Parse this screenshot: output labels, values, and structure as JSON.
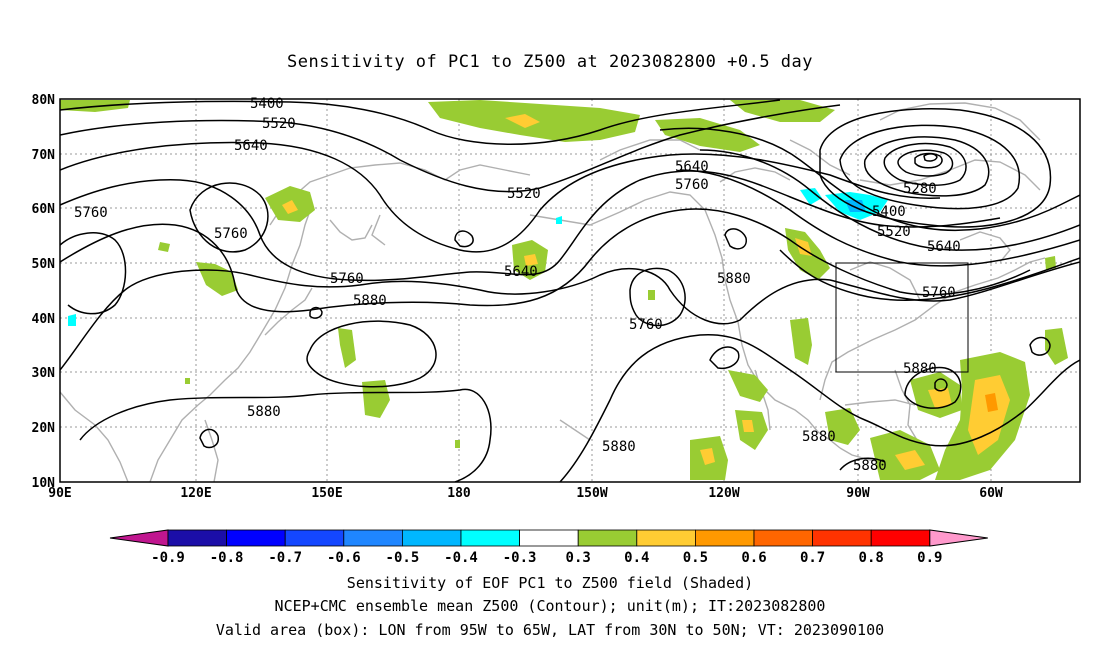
{
  "title": "Sensitivity of PC1 to Z500 at 2023082800 +0.5 day",
  "map": {
    "lon_labels": [
      "90E",
      "120E",
      "150E",
      "180",
      "150W",
      "120W",
      "90W",
      "60W"
    ],
    "lat_labels": [
      "10N",
      "20N",
      "30N",
      "40N",
      "50N",
      "60N",
      "70N",
      "80N"
    ],
    "contour_labels": [
      {
        "text": "5400",
        "ref": "top-west"
      },
      {
        "text": "5520",
        "ref": "north-west"
      },
      {
        "text": "5640",
        "ref": "north-west"
      },
      {
        "text": "5760",
        "ref": "west"
      },
      {
        "text": "5760",
        "ref": "west-central"
      },
      {
        "text": "5520",
        "ref": "dateline"
      },
      {
        "text": "5640",
        "ref": "north-pacific"
      },
      {
        "text": "5640",
        "ref": "alaska"
      },
      {
        "text": "5760",
        "ref": "alaska"
      },
      {
        "text": "5760",
        "ref": "central-pacific"
      },
      {
        "text": "5880",
        "ref": "central-pacific"
      },
      {
        "text": "5760",
        "ref": "east-pacific-low"
      },
      {
        "text": "5880",
        "ref": "west-coast"
      },
      {
        "text": "5280",
        "ref": "greenland-low"
      },
      {
        "text": "5400",
        "ref": "labrador"
      },
      {
        "text": "5520",
        "ref": "labrador"
      },
      {
        "text": "5640",
        "ref": "canada-east"
      },
      {
        "text": "5760",
        "ref": "great-lakes"
      },
      {
        "text": "5880",
        "ref": "west-pacific"
      },
      {
        "text": "5880",
        "ref": "subtropical-pacific"
      },
      {
        "text": "5880",
        "ref": "mexico"
      },
      {
        "text": "5880",
        "ref": "caribbean"
      },
      {
        "text": "5880",
        "ref": "atlantic"
      }
    ],
    "box": {
      "lon_from": "95W",
      "lon_to": "65W",
      "lat_from": "30N",
      "lat_to": "50N"
    }
  },
  "colorbar": {
    "labels": [
      "-0.9",
      "-0.8",
      "-0.7",
      "-0.6",
      "-0.5",
      "-0.4",
      "-0.3",
      "0.3",
      "0.4",
      "0.5",
      "0.6",
      "0.7",
      "0.8",
      "0.9"
    ],
    "colors": [
      "#c0168f",
      "#1b0ea8",
      "#0000ff",
      "#1447ff",
      "#1f86ff",
      "#00b7ff",
      "#00ffff",
      "#ffffff",
      "#99cc33",
      "#ffcc33",
      "#ff9900",
      "#ff6600",
      "#ff3300",
      "#ff0000",
      "#ff99cc"
    ]
  },
  "footer": {
    "line1": "Sensitivity of EOF PC1 to Z500 field (Shaded)",
    "line2": "NCEP+CMC ensemble mean Z500 (Contour); unit(m); IT:2023082800",
    "line3": "Valid area (box): LON from 95W to 65W, LAT from 30N to 50N; VT: 2023090100"
  }
}
